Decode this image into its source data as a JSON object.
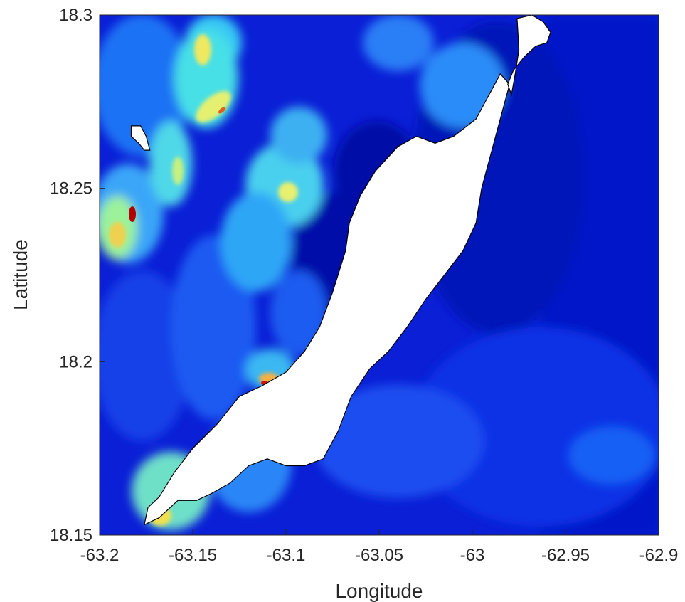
{
  "chart_data": {
    "type": "heatmap",
    "title": "",
    "xlabel": "Longitude",
    "ylabel": "Latitude",
    "xlim": [
      -63.2,
      -62.9
    ],
    "ylim": [
      18.15,
      18.3
    ],
    "x_ticks": [
      -63.2,
      -63.15,
      -63.1,
      -63.05,
      -63,
      -62.95,
      -62.9
    ],
    "x_tick_labels": [
      "-63.2",
      "-63.15",
      "-63.1",
      "-63.05",
      "-63",
      "-62.95",
      "-62.9"
    ],
    "y_ticks": [
      18.15,
      18.2,
      18.25,
      18.3
    ],
    "y_tick_labels": [
      "18.15",
      "18.2",
      "18.25",
      "18.3"
    ],
    "colormap": "jet",
    "land_color": "#ffffff",
    "coastline_color": "#000000",
    "grid": false,
    "legend": "none",
    "land": {
      "main_island": [
        [
          -63.176,
          18.153
        ],
        [
          -63.174,
          18.158
        ],
        [
          -63.168,
          18.161
        ],
        [
          -63.16,
          18.168
        ],
        [
          -63.15,
          18.175
        ],
        [
          -63.137,
          18.182
        ],
        [
          -63.125,
          18.19
        ],
        [
          -63.113,
          18.193
        ],
        [
          -63.1,
          18.197
        ],
        [
          -63.09,
          18.203
        ],
        [
          -63.082,
          18.21
        ],
        [
          -63.075,
          18.22
        ],
        [
          -63.068,
          18.232
        ],
        [
          -63.066,
          18.24
        ],
        [
          -63.06,
          18.248
        ],
        [
          -63.052,
          18.255
        ],
        [
          -63.04,
          18.262
        ],
        [
          -63.03,
          18.265
        ],
        [
          -63.02,
          18.263
        ],
        [
          -63.01,
          18.265
        ],
        [
          -62.998,
          18.27
        ],
        [
          -62.99,
          18.278
        ],
        [
          -62.985,
          18.283
        ],
        [
          -62.98,
          18.28
        ],
        [
          -62.985,
          18.27
        ],
        [
          -62.99,
          18.26
        ],
        [
          -62.995,
          18.25
        ],
        [
          -62.998,
          18.24
        ],
        [
          -63.005,
          18.232
        ],
        [
          -63.015,
          18.225
        ],
        [
          -63.025,
          18.218
        ],
        [
          -63.035,
          18.21
        ],
        [
          -63.045,
          18.203
        ],
        [
          -63.055,
          18.198
        ],
        [
          -63.065,
          18.19
        ],
        [
          -63.072,
          18.18
        ],
        [
          -63.08,
          18.172
        ],
        [
          -63.09,
          18.17
        ],
        [
          -63.1,
          18.17
        ],
        [
          -63.11,
          18.172
        ],
        [
          -63.12,
          18.17
        ],
        [
          -63.13,
          18.165
        ],
        [
          -63.14,
          18.162
        ],
        [
          -63.148,
          18.16
        ],
        [
          -63.158,
          18.16
        ],
        [
          -63.168,
          18.155
        ]
      ],
      "northeast_island": [
        [
          -62.976,
          18.299
        ],
        [
          -62.968,
          18.3
        ],
        [
          -62.962,
          18.298
        ],
        [
          -62.958,
          18.295
        ],
        [
          -62.96,
          18.292
        ],
        [
          -62.966,
          18.291
        ],
        [
          -62.972,
          18.288
        ],
        [
          -62.978,
          18.284
        ],
        [
          -62.981,
          18.28
        ],
        [
          -62.979,
          18.277
        ],
        [
          -62.977,
          18.283
        ],
        [
          -62.975,
          18.29
        ]
      ],
      "west_islet": [
        [
          -63.183,
          18.268
        ],
        [
          -63.178,
          18.268
        ],
        [
          -63.175,
          18.265
        ],
        [
          -63.173,
          18.261
        ],
        [
          -63.176,
          18.261
        ],
        [
          -63.179,
          18.263
        ],
        [
          -63.183,
          18.265
        ]
      ]
    }
  }
}
